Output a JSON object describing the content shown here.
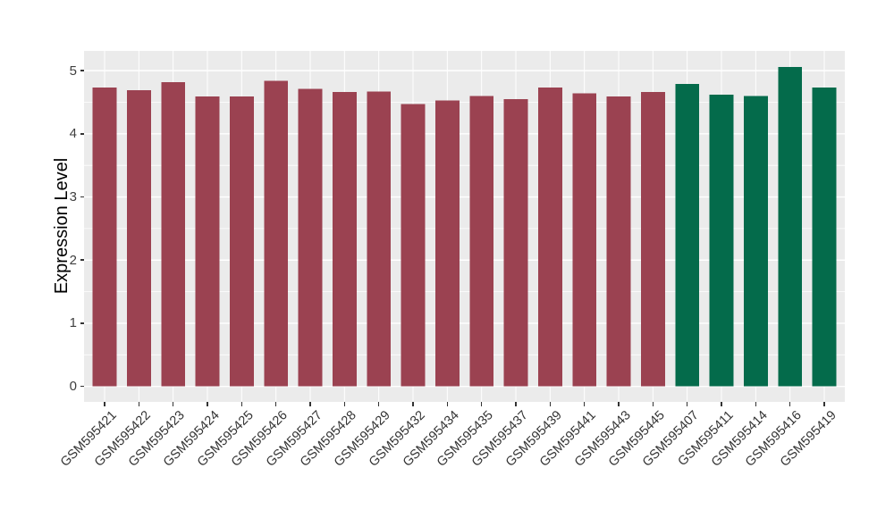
{
  "figure": {
    "background_color": "#FFFFFF",
    "panel_background_color": "#EBEBEB",
    "gridline_color": "#FFFFFF",
    "axis_tick_color": "#333333",
    "axis_text_color": "#3F3F3F"
  },
  "chart_data": {
    "type": "bar",
    "title": "",
    "xlabel": "",
    "ylabel": "Expression Level",
    "legend": "none",
    "grid": true,
    "y_ticks": [
      0,
      1,
      2,
      3,
      4,
      5
    ],
    "y_minor_gridlines": [
      0.5,
      1.5,
      2.5,
      3.5,
      4.5
    ],
    "ylim": [
      0,
      5.06
    ],
    "ylim_display": [
      -0.245,
      5.313
    ],
    "x_label_angle_deg": 45,
    "palette": {
      "group1": "#9B4251",
      "group2": "#046B4B"
    },
    "categories": [
      "GSM595421",
      "GSM595422",
      "GSM595423",
      "GSM595424",
      "GSM595425",
      "GSM595426",
      "GSM595427",
      "GSM595428",
      "GSM595429",
      "GSM595432",
      "GSM595434",
      "GSM595435",
      "GSM595437",
      "GSM595439",
      "GSM595441",
      "GSM595443",
      "GSM595445",
      "GSM595407",
      "GSM595411",
      "GSM595414",
      "GSM595416",
      "GSM595419"
    ],
    "values": [
      4.73,
      4.69,
      4.82,
      4.59,
      4.59,
      4.84,
      4.71,
      4.66,
      4.67,
      4.47,
      4.53,
      4.6,
      4.55,
      4.73,
      4.64,
      4.59,
      4.66,
      4.79,
      4.62,
      4.6,
      5.06,
      4.73
    ],
    "bar_groups": [
      "group1",
      "group1",
      "group1",
      "group1",
      "group1",
      "group1",
      "group1",
      "group1",
      "group1",
      "group1",
      "group1",
      "group1",
      "group1",
      "group1",
      "group1",
      "group1",
      "group1",
      "group2",
      "group2",
      "group2",
      "group2",
      "group2"
    ]
  }
}
